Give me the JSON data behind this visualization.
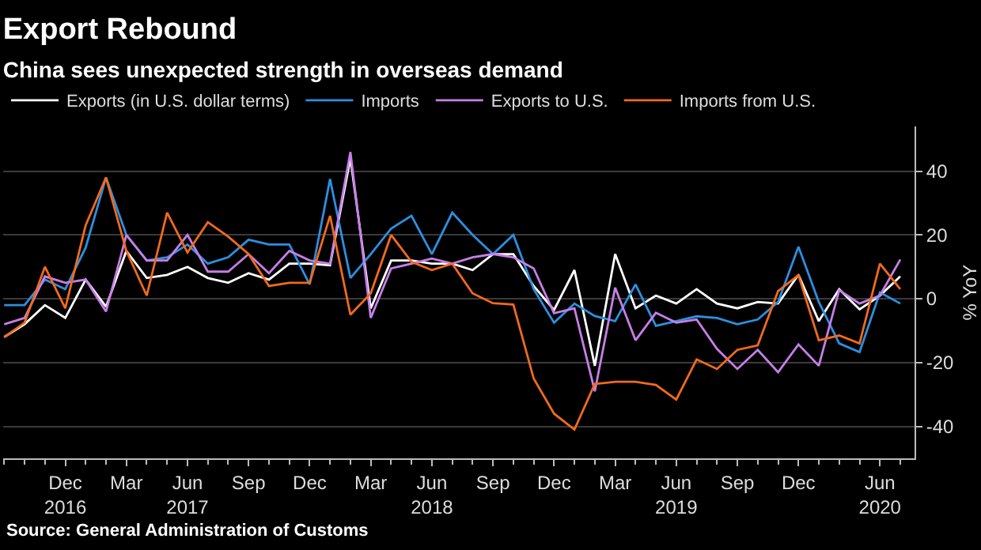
{
  "chart_data": {
    "type": "line",
    "title": "Export Rebound",
    "subtitle": "China sees unexpected strength in overseas demand",
    "ylabel": "% YoY",
    "categories": [
      null,
      null,
      null,
      "Dec\n2016",
      null,
      null,
      "Mar",
      null,
      null,
      "Jun\n2017",
      null,
      null,
      "Sep",
      null,
      null,
      "Dec",
      null,
      null,
      "Mar",
      null,
      null,
      "Jun\n2018",
      null,
      null,
      "Sep",
      null,
      null,
      "Dec",
      null,
      null,
      "Mar",
      null,
      null,
      "Jun\n2019",
      null,
      null,
      "Sep",
      null,
      null,
      "Dec",
      null,
      null,
      null,
      "Jun\n2020",
      null
    ],
    "series": [
      {
        "name": "Exports (in U.S. dollar terms)",
        "color": "#ffffff",
        "values": [
          -12,
          -8,
          -2,
          -6,
          6,
          -2.5,
          15,
          6.5,
          7.5,
          10,
          6.5,
          5,
          8,
          6,
          11,
          11,
          10.5,
          44,
          -3,
          12,
          12,
          11,
          11,
          9,
          14,
          14,
          4,
          -3.5,
          9,
          -21,
          14,
          -3,
          1,
          -1.5,
          3,
          -1.5,
          -3,
          -1,
          -1.5,
          7.5,
          -7,
          3,
          -3.3,
          1,
          7
        ]
      },
      {
        "name": "Imports",
        "color": "#2d8fe0",
        "values": [
          -2,
          -2,
          6,
          3,
          16,
          38,
          20,
          12,
          13,
          17,
          11,
          13,
          18.5,
          17,
          17,
          4.5,
          37.5,
          6.5,
          14,
          22,
          26,
          14,
          27,
          20,
          14,
          20,
          3,
          -7.5,
          -1.5,
          -5.4,
          -7,
          4.5,
          -8.5,
          -7,
          -5.5,
          -6,
          -8,
          -6.5,
          -1,
          16.3,
          -1,
          -14,
          -16.7,
          2,
          -1.5
        ]
      },
      {
        "name": "Exports to U.S.",
        "color": "#c77ee8",
        "values": [
          -8,
          -6,
          7,
          5,
          6,
          -4,
          20,
          12,
          12,
          20,
          8.5,
          8.5,
          14,
          8,
          15,
          12,
          11,
          46,
          -6,
          9.5,
          11,
          12.6,
          11,
          13,
          14,
          13,
          9.5,
          -4.5,
          -3,
          -29,
          3.5,
          -13,
          -4.4,
          -7.5,
          -6.5,
          -15.7,
          -22,
          -16,
          -23,
          -14.3,
          -21,
          2.7,
          -1.5,
          1,
          12.3
        ]
      },
      {
        "name": "Imports from U.S.",
        "color": "#f26a1b",
        "values": [
          -12,
          -7.5,
          10,
          -3,
          23,
          38,
          15,
          1,
          27,
          14.5,
          24,
          19.5,
          14,
          4,
          5,
          5,
          26,
          -5,
          1.7,
          20,
          11.6,
          9,
          11,
          1.7,
          -1.4,
          -1.8,
          -25,
          -36,
          -41,
          -26.7,
          -26,
          -26,
          -27,
          -31.6,
          -19,
          -22,
          -16,
          -14.6,
          2.4,
          7.4,
          -13,
          -11.5,
          -14,
          11,
          3
        ]
      }
    ],
    "ylim": [
      -50,
      54
    ],
    "yticks": [
      -40,
      -20,
      0,
      20,
      40
    ],
    "grid": "y",
    "legend": "top left",
    "marker": "none",
    "line_style": "solid",
    "annotations": [
      "Source: General Administration of Customs"
    ]
  }
}
